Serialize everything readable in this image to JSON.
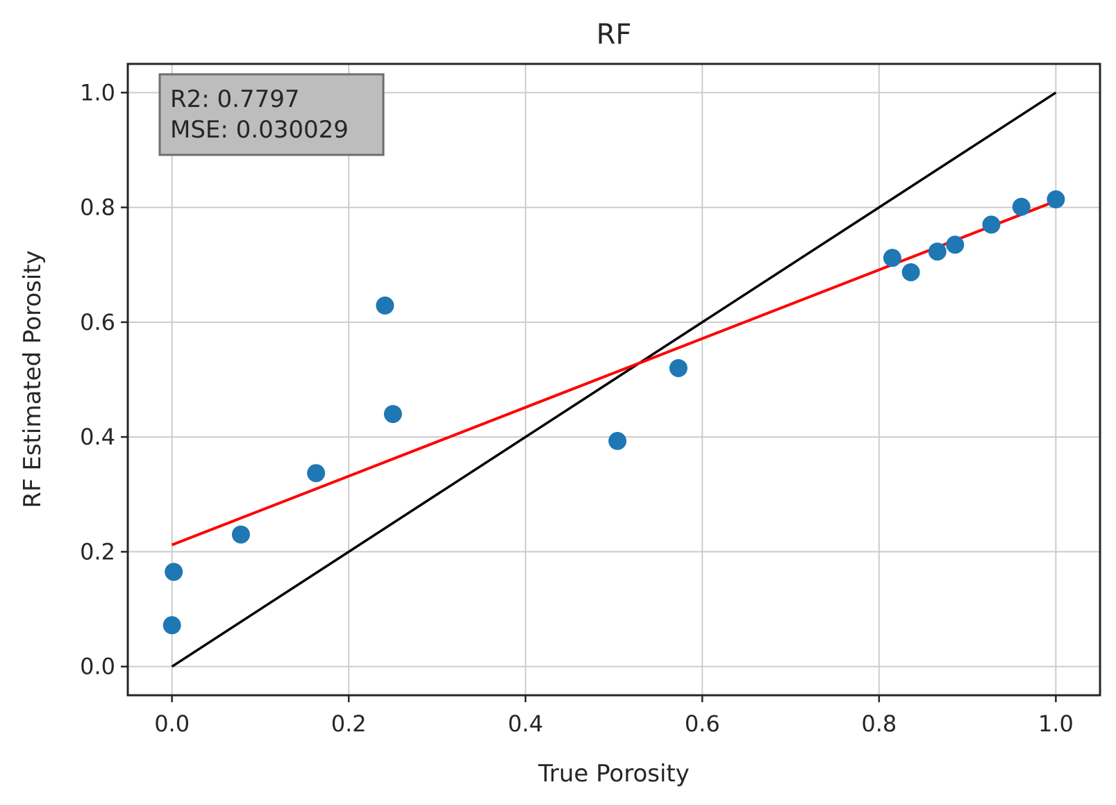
{
  "chart_data": {
    "type": "scatter",
    "title": "RF",
    "xlabel": "True Porosity",
    "ylabel": "RF Estimated Porosity",
    "xlim": [
      -0.05,
      1.05
    ],
    "ylim": [
      -0.05,
      1.05
    ],
    "xticks": [
      0.0,
      0.2,
      0.4,
      0.6,
      0.8,
      1.0
    ],
    "yticks": [
      0.0,
      0.2,
      0.4,
      0.6,
      0.8,
      1.0
    ],
    "xtick_labels": [
      "0.0",
      "0.2",
      "0.4",
      "0.6",
      "0.8",
      "1.0"
    ],
    "ytick_labels": [
      "0.0",
      "0.2",
      "0.4",
      "0.6",
      "0.8",
      "1.0"
    ],
    "grid": true,
    "points": {
      "x": [
        0.0,
        0.002,
        0.078,
        0.163,
        0.241,
        0.25,
        0.504,
        0.573,
        0.815,
        0.836,
        0.866,
        0.886,
        0.927,
        0.961,
        1.0
      ],
      "y": [
        0.072,
        0.165,
        0.23,
        0.337,
        0.629,
        0.44,
        0.393,
        0.52,
        0.712,
        0.687,
        0.723,
        0.735,
        0.77,
        0.801,
        0.814
      ],
      "color": "#1f77b4"
    },
    "identity_line": {
      "x": [
        0.0,
        1.0
      ],
      "y": [
        0.0,
        1.0
      ],
      "color": "#000000"
    },
    "fit_line": {
      "x": [
        0.0,
        1.0
      ],
      "y": [
        0.212,
        0.811
      ],
      "color": "#ff0000"
    },
    "annotation": {
      "lines": [
        "R2: 0.7797",
        "MSE: 0.030029"
      ],
      "placement": "top-left",
      "background": "#bdbdbd"
    }
  }
}
